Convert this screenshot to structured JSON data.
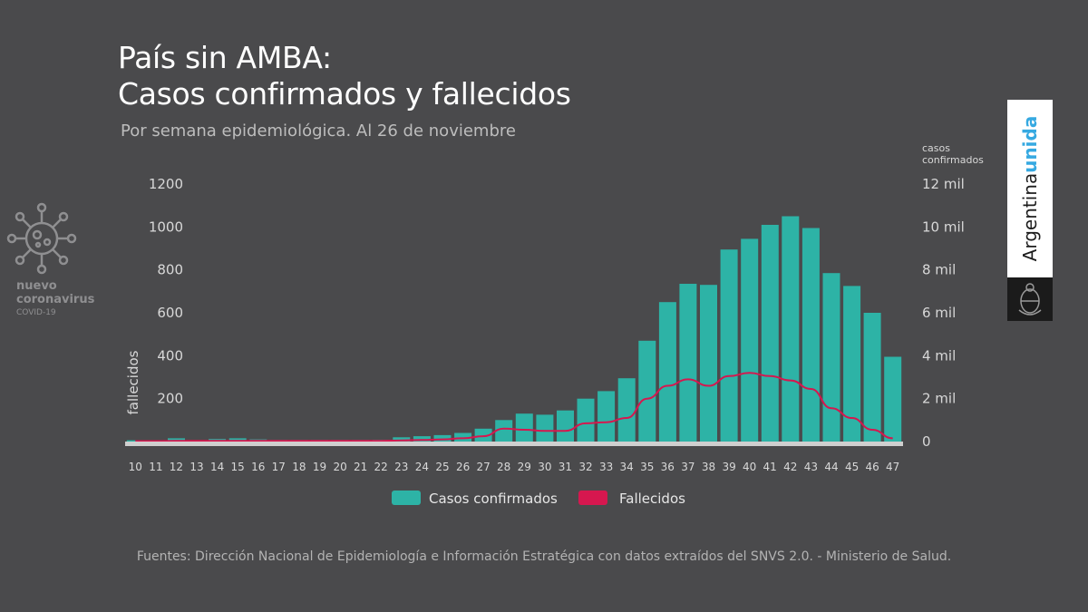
{
  "title_line1": "País sin AMBA:",
  "title_line2": "Casos confirmados y fallecidos",
  "subtitle": "Por semana epidemiológica. Al 26 de noviembre",
  "logo": {
    "line1": "nuevo",
    "line2": "coronavirus",
    "line3": "COVID-19"
  },
  "brand": {
    "word1": "Argentina",
    "word2": "unida"
  },
  "source": "Fuentes: Dirección Nacional de Epidemiología e Información Estratégica con datos extraídos del SNVS 2.0. - Ministerio de Salud.",
  "colors": {
    "bars": "#2db3a6",
    "line": "#d6174f",
    "background": "#4a4a4c"
  },
  "chart_data": {
    "type": "bar+line",
    "xlabel": "",
    "categories": [
      "10",
      "11",
      "12",
      "13",
      "14",
      "15",
      "16",
      "17",
      "18",
      "19",
      "20",
      "21",
      "22",
      "23",
      "24",
      "25",
      "26",
      "27",
      "28",
      "29",
      "30",
      "31",
      "32",
      "33",
      "34",
      "35",
      "36",
      "37",
      "38",
      "39",
      "40",
      "41",
      "42",
      "43",
      "44",
      "45",
      "46",
      "47"
    ],
    "left_axis": {
      "label": "fallecidos",
      "ticks": [
        "1200",
        "1000",
        "800",
        "600",
        "400",
        "200"
      ],
      "ylim": [
        0,
        1200
      ]
    },
    "right_axis": {
      "label_line1": "casos",
      "label_line2": "confirmados",
      "ticks": [
        "12 mil",
        "10 mil",
        "8 mil",
        "6 mil",
        "4 mil",
        "2 mil",
        "0"
      ],
      "ylim": [
        0,
        12000
      ]
    },
    "series": [
      {
        "name": "Casos confirmados",
        "axis": "right",
        "kind": "bar",
        "values": [
          60,
          60,
          150,
          60,
          120,
          150,
          100,
          70,
          70,
          70,
          70,
          70,
          80,
          200,
          250,
          300,
          400,
          600,
          1000,
          1300,
          1250,
          1450,
          2000,
          2350,
          2950,
          4700,
          6500,
          7350,
          7300,
          8950,
          9450,
          10100,
          10500,
          9950,
          7850,
          7250,
          6000,
          3950
        ]
      },
      {
        "name": "Fallecidos",
        "axis": "left",
        "kind": "line",
        "values": [
          2,
          2,
          3,
          3,
          3,
          3,
          3,
          3,
          3,
          3,
          3,
          3,
          3,
          5,
          7,
          10,
          15,
          25,
          60,
          55,
          50,
          50,
          85,
          90,
          110,
          200,
          260,
          290,
          260,
          305,
          320,
          305,
          285,
          245,
          155,
          110,
          55,
          15
        ]
      }
    ]
  }
}
